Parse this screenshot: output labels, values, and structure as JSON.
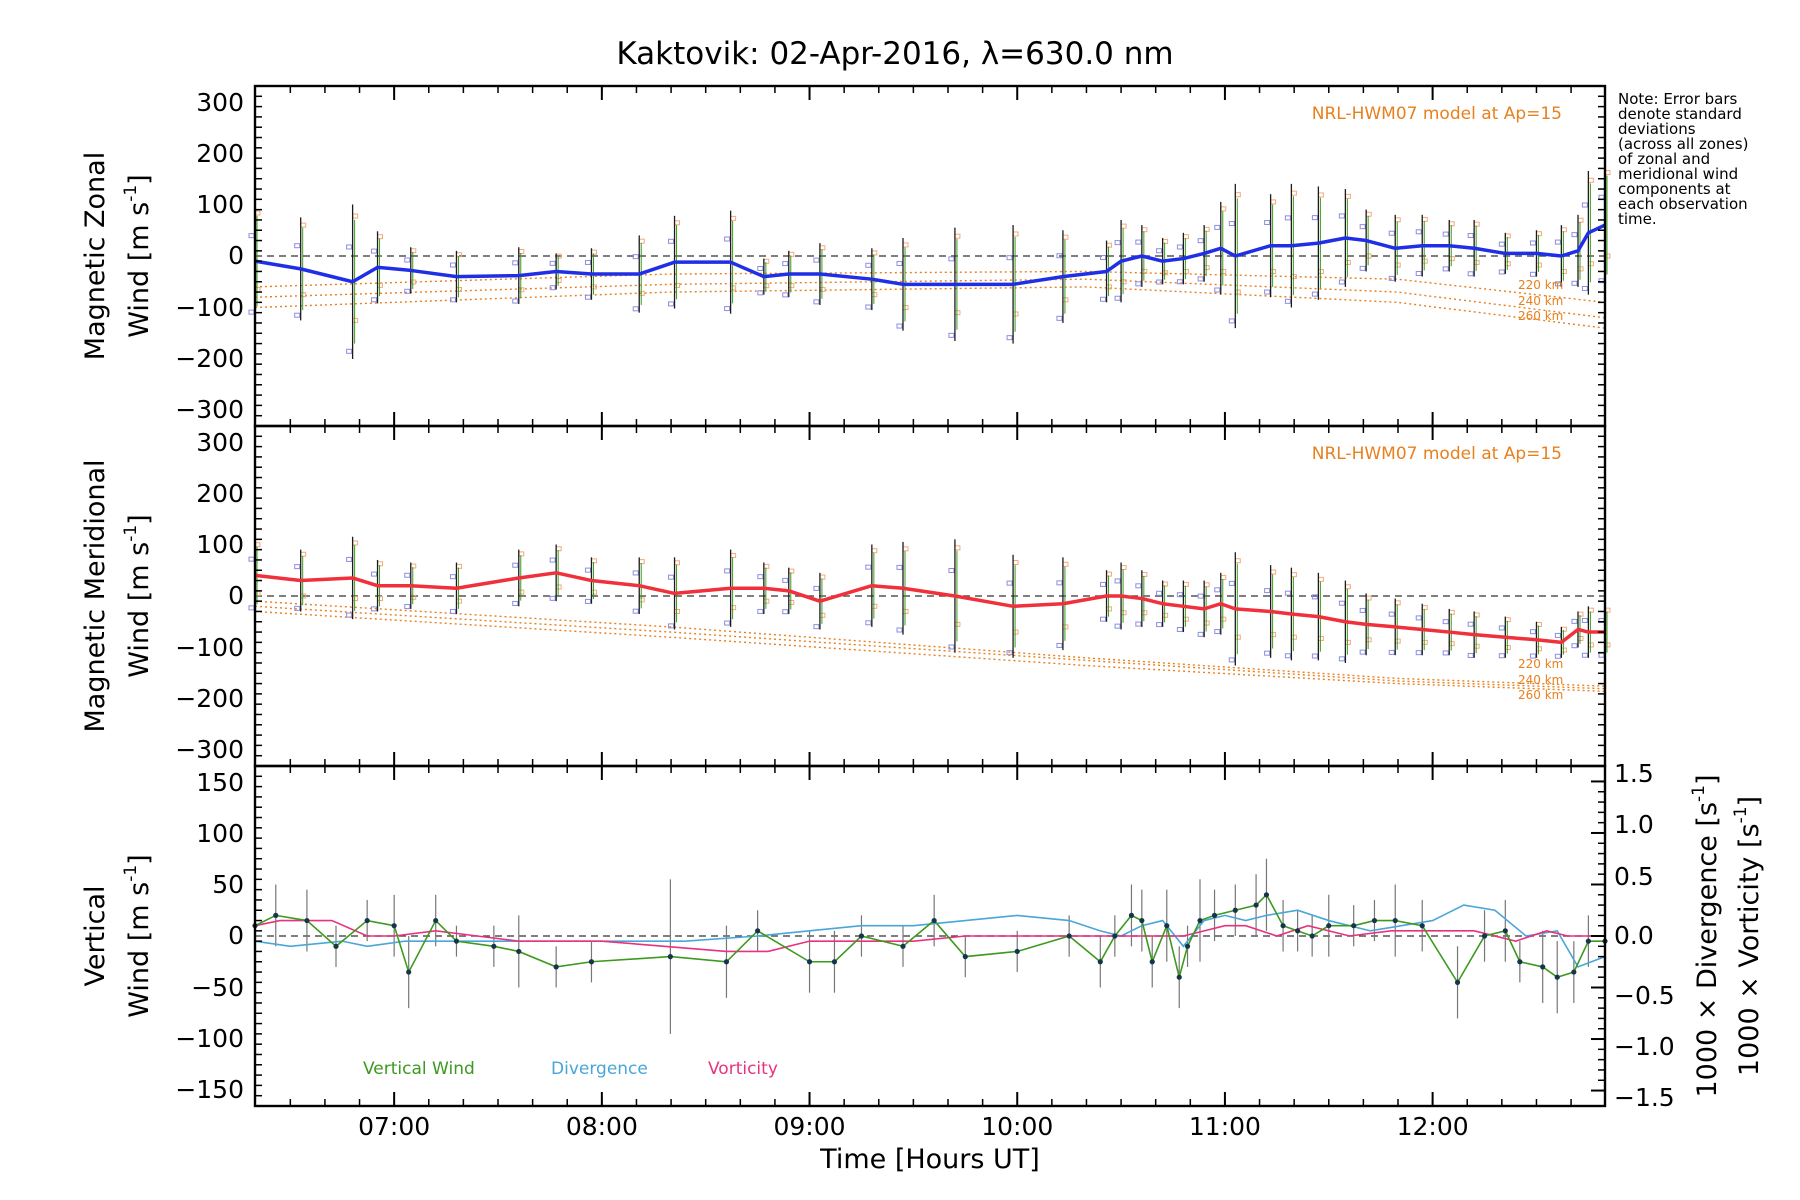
{
  "title": "Kaktovik: 02-Apr-2016, λ=630.0 nm",
  "note_lines": [
    "Note: Error bars",
    "denote standard",
    "deviations",
    "(across all zones)",
    "of zonal and",
    "meridional wind",
    "components at",
    "each observation",
    "time."
  ],
  "x_axis": {
    "label": "Time [Hours UT]",
    "range_hours": [
      6.33,
      12.83
    ],
    "ticks": [
      {
        "value": 7,
        "label": "07:00"
      },
      {
        "value": 8,
        "label": "08:00"
      },
      {
        "value": 9,
        "label": "09:00"
      },
      {
        "value": 10,
        "label": "10:00"
      },
      {
        "value": 11,
        "label": "11:00"
      },
      {
        "value": 12,
        "label": "12:00"
      }
    ]
  },
  "panels": {
    "zonal": {
      "ylabel_line1": "Magnetic Zonal",
      "ylabel_line2": "Wind [m s",
      "ylabel_sup": "-1",
      "ylabel_close": "]",
      "model_label": "NRL-HWM07 model at Ap=15",
      "altitude_labels": [
        "220 km",
        "240 km",
        "260 km"
      ],
      "yticks": [
        "300",
        "200",
        "100",
        "0",
        "−100",
        "−200",
        "−300"
      ]
    },
    "meridional": {
      "ylabel_line1": "Magnetic Meridional",
      "ylabel_line2": "Wind [m s",
      "ylabel_sup": "-1",
      "ylabel_close": "]",
      "model_label": "NRL-HWM07 model at Ap=15",
      "altitude_labels": [
        "220 km",
        "240 km",
        "260 km"
      ],
      "yticks": [
        "300",
        "200",
        "100",
        "0",
        "−100",
        "−200",
        "−300"
      ]
    },
    "vertical": {
      "ylabel_line1": "Vertical",
      "ylabel_line2_a": "Wind ",
      "ylabel_line2_b": "[m s",
      "ylabel_sup": "-1",
      "ylabel_close": "]",
      "right_label_div": "1000 × Divergence [s",
      "right_label_vort": "1000 × Vorticity [s",
      "right_sup": "-1",
      "right_close": "]",
      "yticks": [
        "150",
        "100",
        "50",
        "0",
        "−50",
        "−100",
        "−150"
      ],
      "right_ticks": [
        "1.5",
        "1.0",
        "0.5",
        "0.0",
        "−0.5",
        "−1.0",
        "−1.5"
      ],
      "legend": [
        "Vertical Wind",
        "Divergence",
        "Vorticity"
      ]
    }
  },
  "colors": {
    "zonal_line": "#1f2fe6",
    "meridional_line": "#f0303a",
    "model": "#e8801e",
    "vertical": "#3c9a1e",
    "divergence": "#49a6d9",
    "vorticity": "#e8327f",
    "scatter_blue": "#8a8ee0",
    "scatter_orange": "#f4a97a"
  },
  "chart_data": [
    {
      "type": "line",
      "panel": "zonal",
      "ylim": [
        -330,
        330
      ],
      "series": [
        {
          "x": [
            6.33,
            6.55,
            6.8,
            6.92,
            7.08,
            7.3,
            7.6,
            7.78,
            7.95,
            8.18,
            8.35,
            8.62,
            8.78,
            8.9,
            9.05,
            9.3,
            9.45,
            9.7,
            9.98,
            10.22,
            10.43,
            10.5,
            10.6,
            10.7,
            10.8,
            10.9,
            10.98,
            11.05,
            11.22,
            11.32,
            11.45,
            11.58,
            11.68,
            11.82,
            11.95,
            12.08,
            12.2,
            12.35,
            12.5,
            12.62,
            12.7,
            12.75,
            12.83
          ],
          "y": [
            -10,
            -25,
            -50,
            -22,
            -28,
            -40,
            -38,
            -30,
            -35,
            -35,
            -12,
            -12,
            -40,
            -35,
            -35,
            -45,
            -55,
            -55,
            -55,
            -40,
            -30,
            -10,
            0,
            -10,
            -5,
            5,
            15,
            0,
            20,
            20,
            25,
            35,
            30,
            15,
            20,
            20,
            15,
            5,
            5,
            0,
            10,
            45,
            60
          ],
          "error": [
            110,
            100,
            150,
            70,
            45,
            50,
            55,
            35,
            50,
            75,
            90,
            100,
            35,
            45,
            60,
            60,
            90,
            110,
            115,
            90,
            60,
            80,
            60,
            45,
            50,
            55,
            90,
            140,
            100,
            120,
            110,
            95,
            60,
            65,
            60,
            50,
            55,
            40,
            45,
            60,
            70,
            120,
            120
          ]
        },
        {
          "name": "220 km",
          "x": [
            6.33,
            8.33,
            10.33,
            11.83,
            12.83
          ],
          "y": [
            -60,
            -35,
            -30,
            -45,
            -90
          ]
        },
        {
          "name": "240 km",
          "x": [
            6.33,
            8.33,
            10.33,
            11.83,
            12.83
          ],
          "y": [
            -80,
            -55,
            -45,
            -70,
            -120
          ]
        },
        {
          "name": "260 km",
          "x": [
            6.33,
            8.33,
            10.33,
            11.83,
            12.83
          ],
          "y": [
            -100,
            -70,
            -60,
            -90,
            -140
          ]
        }
      ]
    },
    {
      "type": "line",
      "panel": "meridional",
      "ylim": [
        -330,
        330
      ],
      "series": [
        {
          "x": [
            6.33,
            6.55,
            6.8,
            6.92,
            7.08,
            7.3,
            7.6,
            7.78,
            7.95,
            8.18,
            8.35,
            8.62,
            8.78,
            8.9,
            9.05,
            9.3,
            9.45,
            9.7,
            9.98,
            10.22,
            10.43,
            10.5,
            10.6,
            10.7,
            10.8,
            10.9,
            10.98,
            11.05,
            11.22,
            11.32,
            11.45,
            11.58,
            11.68,
            11.82,
            11.95,
            12.08,
            12.2,
            12.35,
            12.5,
            12.62,
            12.7,
            12.75,
            12.83
          ],
          "y": [
            40,
            30,
            35,
            20,
            20,
            15,
            35,
            45,
            30,
            20,
            5,
            15,
            15,
            10,
            -10,
            20,
            15,
            0,
            -20,
            -15,
            0,
            0,
            -5,
            -15,
            -20,
            -25,
            -15,
            -25,
            -30,
            -35,
            -40,
            -50,
            -55,
            -60,
            -65,
            -70,
            -75,
            -80,
            -85,
            -90,
            -65,
            -70,
            -70
          ],
          "error": [
            70,
            60,
            80,
            50,
            45,
            50,
            55,
            55,
            45,
            55,
            70,
            75,
            50,
            45,
            55,
            80,
            90,
            110,
            100,
            90,
            50,
            65,
            55,
            45,
            50,
            55,
            60,
            110,
            90,
            90,
            85,
            80,
            60,
            55,
            50,
            45,
            45,
            40,
            35,
            30,
            35,
            50,
            50
          ]
        },
        {
          "name": "220 km",
          "x": [
            6.33,
            8.33,
            10.33,
            11.83,
            12.83
          ],
          "y": [
            -10,
            -60,
            -120,
            -160,
            -175
          ]
        },
        {
          "name": "240 km",
          "x": [
            6.33,
            8.33,
            10.33,
            11.83,
            12.83
          ],
          "y": [
            -20,
            -70,
            -125,
            -165,
            -180
          ]
        },
        {
          "name": "260 km",
          "x": [
            6.33,
            8.33,
            10.33,
            11.83,
            12.83
          ],
          "y": [
            -30,
            -80,
            -135,
            -170,
            -185
          ]
        }
      ]
    },
    {
      "type": "line",
      "panel": "vertical",
      "ylim": [
        -165,
        165
      ],
      "y2lim": [
        -1.65,
        1.65
      ],
      "series": [
        {
          "name": "Vertical Wind",
          "x": [
            6.33,
            6.43,
            6.58,
            6.72,
            6.87,
            7.0,
            7.07,
            7.2,
            7.3,
            7.48,
            7.6,
            7.78,
            7.95,
            8.33,
            8.6,
            8.75,
            9.0,
            9.12,
            9.25,
            9.45,
            9.6,
            9.75,
            10.0,
            10.25,
            10.4,
            10.47,
            10.55,
            10.6,
            10.65,
            10.72,
            10.78,
            10.82,
            10.88,
            10.95,
            11.05,
            11.15,
            11.2,
            11.28,
            11.35,
            11.42,
            11.5,
            11.62,
            11.72,
            11.82,
            11.95,
            12.12,
            12.25,
            12.35,
            12.42,
            12.53,
            12.6,
            12.68,
            12.75,
            12.83
          ],
          "y": [
            10,
            20,
            15,
            -10,
            15,
            10,
            -35,
            15,
            -5,
            -10,
            -15,
            -30,
            -25,
            -20,
            -25,
            5,
            -25,
            -25,
            0,
            -10,
            15,
            -20,
            -15,
            0,
            -25,
            0,
            20,
            15,
            -25,
            10,
            -40,
            -10,
            15,
            20,
            25,
            30,
            40,
            10,
            5,
            0,
            10,
            10,
            15,
            15,
            10,
            -45,
            0,
            5,
            -25,
            -30,
            -40,
            -35,
            -5,
            -5
          ],
          "error": [
            5,
            30,
            30,
            20,
            20,
            30,
            35,
            25,
            15,
            20,
            35,
            20,
            20,
            75,
            35,
            20,
            30,
            30,
            20,
            20,
            25,
            20,
            20,
            20,
            25,
            20,
            30,
            30,
            25,
            35,
            30,
            20,
            40,
            25,
            25,
            30,
            35,
            25,
            20,
            20,
            30,
            20,
            20,
            35,
            25,
            35,
            25,
            30,
            20,
            35,
            35,
            30,
            25,
            25
          ]
        },
        {
          "name": "Divergence",
          "x": [
            6.33,
            6.5,
            6.75,
            6.87,
            7.05,
            7.2,
            7.5,
            7.75,
            8.05,
            8.4,
            8.75,
            9.0,
            9.25,
            9.5,
            9.75,
            10.0,
            10.25,
            10.4,
            10.5,
            10.6,
            10.7,
            10.8,
            10.9,
            11.0,
            11.1,
            11.2,
            11.35,
            11.5,
            11.7,
            11.85,
            12.0,
            12.15,
            12.3,
            12.45,
            12.6,
            12.7,
            12.83
          ],
          "y": [
            -0.05,
            -0.1,
            -0.05,
            -0.1,
            -0.05,
            -0.05,
            -0.05,
            -0.05,
            -0.05,
            -0.05,
            0.0,
            0.05,
            0.1,
            0.1,
            0.15,
            0.2,
            0.15,
            0.05,
            0.0,
            0.1,
            0.15,
            -0.1,
            0.15,
            0.2,
            0.15,
            0.2,
            0.25,
            0.15,
            0.05,
            0.1,
            0.15,
            0.3,
            0.25,
            0.0,
            0.05,
            -0.3,
            -0.2
          ],
          "error": []
        },
        {
          "name": "Vorticity",
          "x": [
            6.33,
            6.45,
            6.7,
            6.87,
            7.0,
            7.2,
            7.4,
            7.6,
            7.8,
            8.0,
            8.3,
            8.6,
            8.8,
            9.0,
            9.25,
            9.5,
            9.75,
            10.0,
            10.25,
            10.4,
            10.5,
            10.6,
            10.7,
            10.8,
            10.9,
            11.0,
            11.1,
            11.25,
            11.4,
            11.6,
            11.8,
            12.0,
            12.2,
            12.4,
            12.55,
            12.65,
            12.83
          ],
          "y": [
            0.1,
            0.15,
            0.15,
            0.0,
            0.0,
            0.05,
            0.0,
            -0.05,
            -0.05,
            -0.05,
            -0.1,
            -0.15,
            -0.15,
            -0.05,
            -0.05,
            -0.05,
            0.0,
            0.0,
            0.0,
            0.0,
            0.0,
            0.0,
            0.0,
            0.0,
            0.05,
            0.1,
            0.1,
            0.0,
            0.1,
            0.0,
            0.05,
            0.05,
            0.05,
            -0.05,
            0.05,
            0.0,
            0.0
          ],
          "error": []
        }
      ]
    }
  ]
}
